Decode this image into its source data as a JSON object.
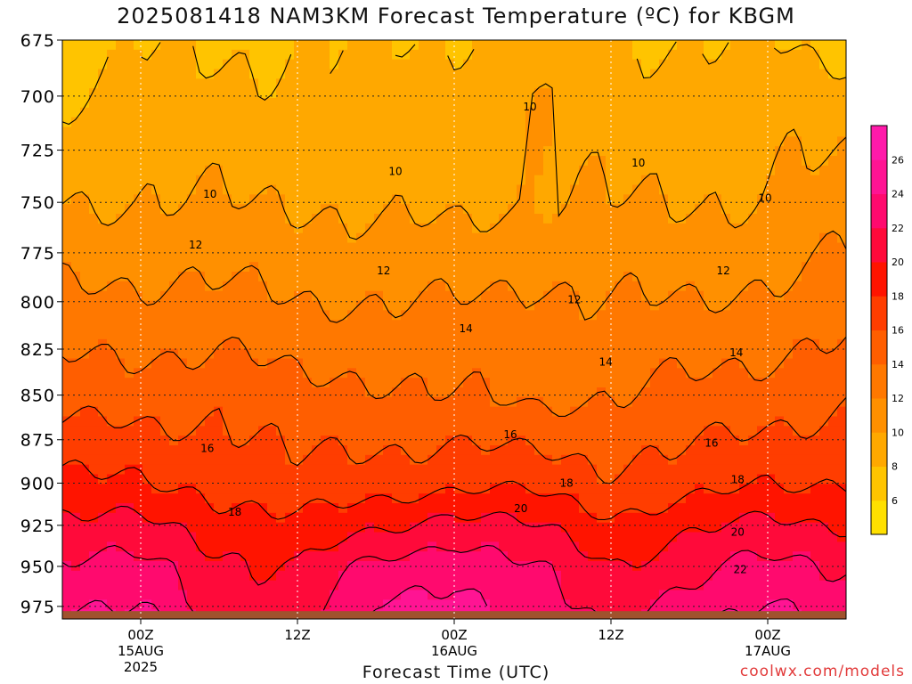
{
  "title": "2025081418 NAM3KM Forecast Temperature (ºC) for KBGM",
  "xlabel": "Forecast Time (UTC)",
  "credit": "coolwx.com/models",
  "colors": {
    "ground": "#a0522d",
    "contour": "#000000",
    "grid": "#222222",
    "colorbar": [
      "#ffe000",
      "#ffc400",
      "#ffa800",
      "#ff9000",
      "#ff7800",
      "#ff5e00",
      "#ff3d00",
      "#ff1400",
      "#ff0a3a",
      "#ff0a6e",
      "#ff1493",
      "#ff1aaa"
    ]
  },
  "chart_data": {
    "type": "heatmap",
    "title": "2025081418 NAM3KM Forecast Temperature (ºC) for KBGM",
    "xlabel": "Forecast Time (UTC)",
    "ylabel": "",
    "y_levels_hPa": [
      675,
      700,
      725,
      750,
      775,
      800,
      825,
      850,
      875,
      900,
      925,
      950,
      975
    ],
    "ylim_hPa": [
      975,
      675
    ],
    "xlim_hours": [
      0,
      60
    ],
    "x_ticks": [
      {
        "hour": 6,
        "label1": "00Z",
        "label2": "15AUG",
        "label3": "2025"
      },
      {
        "hour": 18,
        "label1": "12Z",
        "label2": "",
        "label3": ""
      },
      {
        "hour": 30,
        "label1": "00Z",
        "label2": "16AUG",
        "label3": ""
      },
      {
        "hour": 42,
        "label1": "12Z",
        "label2": "",
        "label3": ""
      },
      {
        "hour": 54,
        "label1": "00Z",
        "label2": "17AUG",
        "label3": ""
      }
    ],
    "colorbar_ticks": [
      6,
      8,
      10,
      12,
      14,
      16,
      18,
      20,
      22,
      24,
      26
    ],
    "colorbar_range": [
      4,
      28
    ],
    "grid": true,
    "contour_interval": 2,
    "contour_labels": [
      {
        "v": 10,
        "hour": 11.3,
        "p": 746
      },
      {
        "v": 10,
        "hour": 35.8,
        "p": 705
      },
      {
        "v": 10,
        "hour": 25.5,
        "p": 735
      },
      {
        "v": 10,
        "hour": 44.1,
        "p": 731
      },
      {
        "v": 10,
        "hour": 53.8,
        "p": 748
      },
      {
        "v": 12,
        "hour": 10.2,
        "p": 771
      },
      {
        "v": 12,
        "hour": 24.6,
        "p": 784
      },
      {
        "v": 12,
        "hour": 39.2,
        "p": 799
      },
      {
        "v": 12,
        "hour": 50.6,
        "p": 784
      },
      {
        "v": 14,
        "hour": 30.9,
        "p": 814
      },
      {
        "v": 14,
        "hour": 41.6,
        "p": 832
      },
      {
        "v": 14,
        "hour": 51.6,
        "p": 827
      },
      {
        "v": 16,
        "hour": 11.1,
        "p": 880
      },
      {
        "v": 16,
        "hour": 34.3,
        "p": 872
      },
      {
        "v": 16,
        "hour": 49.7,
        "p": 877
      },
      {
        "v": 18,
        "hour": 13.2,
        "p": 917
      },
      {
        "v": 18,
        "hour": 38.6,
        "p": 900
      },
      {
        "v": 18,
        "hour": 51.7,
        "p": 898
      },
      {
        "v": 20,
        "hour": 35.1,
        "p": 915
      },
      {
        "v": 20,
        "hour": 51.7,
        "p": 929
      },
      {
        "v": 22,
        "hour": 51.9,
        "p": 952
      }
    ],
    "temperature_profile": [
      {
        "hour": 0,
        "t675": 7,
        "t700": 8,
        "t750": 10,
        "t800": 12.5,
        "t850": 15.0,
        "t900": 18.5,
        "t925": 20.5,
        "t950": 22.5,
        "t975": 24
      },
      {
        "hour": 6,
        "t675": 8,
        "t700": 8.5,
        "t750": 10,
        "t800": 12.5,
        "t850": 15.0,
        "t900": 18.0,
        "t925": 20.5,
        "t950": 22.5,
        "t975": 24
      },
      {
        "hour": 12,
        "t675": 7.5,
        "t700": 8.5,
        "t750": 10,
        "t800": 12.5,
        "t850": 15.5,
        "t900": 17.5,
        "t925": 19.0,
        "t950": 20.5,
        "t975": 21
      },
      {
        "hour": 18,
        "t675": 8,
        "t700": 8.5,
        "t750": 10,
        "t800": 12.0,
        "t850": 14.5,
        "t900": 16.5,
        "t925": 18.5,
        "t950": 20.0,
        "t975": 21
      },
      {
        "hour": 24,
        "t675": 8,
        "t700": 8.5,
        "t750": 9.5,
        "t800": 12.0,
        "t850": 14.5,
        "t900": 17.0,
        "t925": 19.5,
        "t950": 22.5,
        "t975": 24
      },
      {
        "hour": 30,
        "t675": 8,
        "t700": 9,
        "t750": 9.5,
        "t800": 12.0,
        "t850": 14.0,
        "t900": 17.5,
        "t925": 21.0,
        "t950": 23.5,
        "t975": 25
      },
      {
        "hour": 36,
        "t675": 9,
        "t700": 10,
        "t750": 10,
        "t800": 12.5,
        "t850": 13.5,
        "t900": 17.5,
        "t925": 20.0,
        "t950": 22.0,
        "t975": 23
      },
      {
        "hour": 42,
        "t675": 8,
        "t700": 8.5,
        "t750": 10,
        "t800": 12.0,
        "t850": 14.0,
        "t900": 16.5,
        "t925": 18.5,
        "t950": 20.0,
        "t975": 21
      },
      {
        "hour": 48,
        "t675": 8,
        "t700": 9,
        "t750": 10,
        "t800": 12.0,
        "t850": 14.5,
        "t900": 17.0,
        "t925": 19.5,
        "t950": 21.5,
        "t975": 23
      },
      {
        "hour": 54,
        "t675": 8,
        "t700": 9,
        "t750": 10,
        "t800": 12.5,
        "t850": 15.0,
        "t900": 18.0,
        "t925": 20.5,
        "t950": 22.5,
        "t975": 24
      },
      {
        "hour": 60,
        "t675": 7,
        "t700": 9,
        "t750": 11,
        "t800": 13.0,
        "t850": 15.5,
        "t900": 18.0,
        "t925": 20.0,
        "t950": 22.0,
        "t975": 23
      }
    ]
  }
}
